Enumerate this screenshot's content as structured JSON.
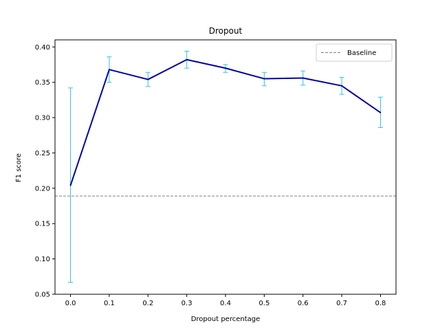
{
  "chart_data": {
    "type": "line",
    "title": "Dropout",
    "xlabel": "Dropout percentage",
    "ylabel": "F1 score",
    "xlim": [
      -0.04,
      0.84
    ],
    "ylim": [
      0.05,
      0.41
    ],
    "x_ticks": [
      0.0,
      0.1,
      0.2,
      0.3,
      0.4,
      0.5,
      0.6,
      0.7,
      0.8
    ],
    "x_tick_labels": [
      "0.0",
      "0.1",
      "0.2",
      "0.3",
      "0.4",
      "0.5",
      "0.6",
      "0.7",
      "0.8"
    ],
    "y_ticks": [
      0.05,
      0.1,
      0.15,
      0.2,
      0.25,
      0.3,
      0.35,
      0.4
    ],
    "y_tick_labels": [
      "0.05",
      "0.10",
      "0.15",
      "0.20",
      "0.25",
      "0.30",
      "0.35",
      "0.40"
    ],
    "grid": false,
    "series": [
      {
        "name": "F1",
        "color": "#0000aa",
        "x": [
          0.0,
          0.1,
          0.2,
          0.3,
          0.4,
          0.5,
          0.6,
          0.7,
          0.8
        ],
        "y": [
          0.204,
          0.368,
          0.354,
          0.382,
          0.37,
          0.355,
          0.356,
          0.345,
          0.307
        ],
        "error_low": [
          0.067,
          0.35,
          0.344,
          0.37,
          0.364,
          0.345,
          0.346,
          0.333,
          0.286
        ],
        "error_high": [
          0.342,
          0.386,
          0.364,
          0.394,
          0.375,
          0.364,
          0.366,
          0.357,
          0.329
        ],
        "error_color": "#2ec4e6"
      }
    ],
    "baseline": {
      "name": "Baseline",
      "y": 0.189,
      "color": "#808080",
      "style": "dashed"
    },
    "legend": {
      "position": "top-right",
      "entries": [
        "Baseline"
      ]
    }
  }
}
